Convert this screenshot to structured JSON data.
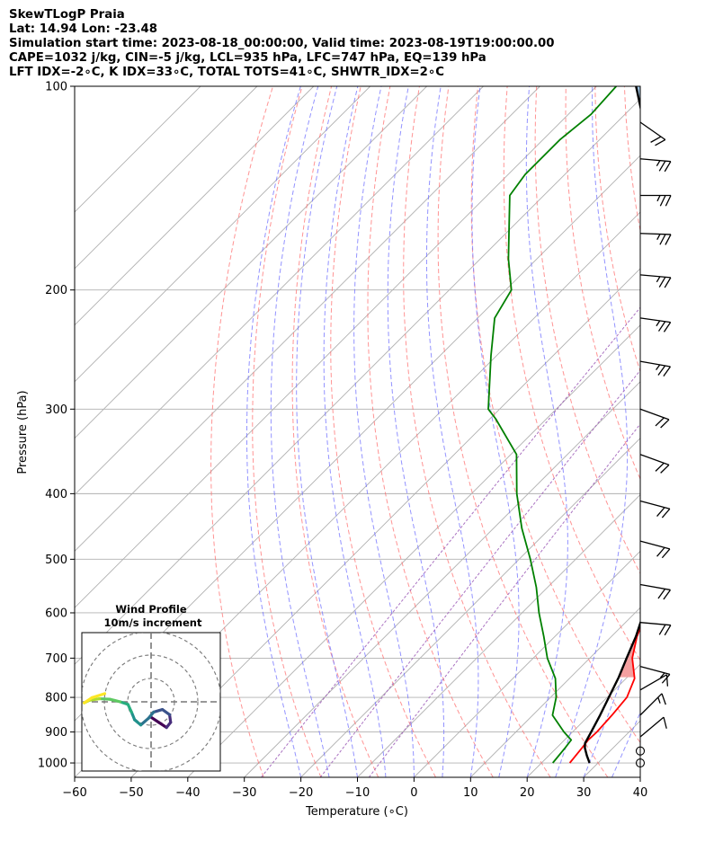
{
  "header": {
    "line1": "SkewTLogP Praia",
    "line2": "Lat: 14.94   Lon: -23.48",
    "line3": "Simulation start time: 2023-08-18_00:00:00, Valid time: 2023-08-19T19:00:00.00",
    "line4": "CAPE=1032 j/kg, CIN=-5 j/kg, LCL=935 hPa, LFC=747 hPa, EQ=139 hPa",
    "line5": "LFT IDX=-2∘C, K IDX=33∘C, TOTAL TOTS=41∘C, SHWTR_IDX=2∘C"
  },
  "chart_data": {
    "type": "line",
    "xlabel": "Temperature (∘C)",
    "ylabel": "Pressure (hPa)",
    "xlim": [
      -60,
      40
    ],
    "ylim": [
      1050,
      100
    ],
    "yscale": "log",
    "skew": "45deg",
    "grid": true,
    "x_ticks": [
      -60,
      -50,
      -40,
      -30,
      -20,
      -10,
      0,
      10,
      20,
      30,
      40
    ],
    "y_ticks": [
      100,
      200,
      300,
      400,
      500,
      600,
      700,
      800,
      900,
      1000
    ],
    "colors": {
      "temperature": "#ff0000",
      "dewpoint": "#008000",
      "parcel": "#000000",
      "cape_fill": "#f4a0a0",
      "cin_fill": "#9fc4e2",
      "dry_adiabat": "#ff7070",
      "moist_adiabat": "#6f6fff",
      "mixing_ratio": "#9b59b6",
      "isotherm": "#b0b0b0"
    },
    "temperature": [
      [
        1000,
        25.0
      ],
      [
        950,
        24.5
      ],
      [
        925,
        24.2
      ],
      [
        900,
        24.3
      ],
      [
        850,
        24.0
      ],
      [
        800,
        23.5
      ],
      [
        750,
        21.5
      ],
      [
        700,
        17.5
      ],
      [
        650,
        14.5
      ],
      [
        600,
        12.0
      ],
      [
        550,
        9.0
      ],
      [
        500,
        5.0
      ],
      [
        450,
        -0.5
      ],
      [
        400,
        -6.5
      ],
      [
        350,
        -12.5
      ],
      [
        300,
        -21.0
      ],
      [
        250,
        -31.0
      ],
      [
        200,
        -42.5
      ],
      [
        170,
        -51.0
      ],
      [
        150,
        -58.0
      ],
      [
        140,
        -62.0
      ],
      [
        130,
        -65.0
      ],
      [
        120,
        -68.0
      ],
      [
        110,
        -72.5
      ],
      [
        100,
        -77.0
      ]
    ],
    "dewpoint": [
      [
        1000,
        22.0
      ],
      [
        950,
        21.5
      ],
      [
        925,
        21.2
      ],
      [
        900,
        18.5
      ],
      [
        850,
        13.5
      ],
      [
        800,
        11.0
      ],
      [
        750,
        7.5
      ],
      [
        700,
        2.5
      ],
      [
        650,
        -2.0
      ],
      [
        600,
        -7.0
      ],
      [
        550,
        -12.0
      ],
      [
        500,
        -18.0
      ],
      [
        450,
        -25.0
      ],
      [
        400,
        -32.0
      ],
      [
        350,
        -39.0
      ],
      [
        310,
        -49.0
      ],
      [
        300,
        -52.0
      ],
      [
        250,
        -61.0
      ],
      [
        220,
        -67.0
      ],
      [
        200,
        -69.0
      ],
      [
        180,
        -75.0
      ],
      [
        160,
        -81.0
      ],
      [
        145,
        -86.0
      ],
      [
        135,
        -87.0
      ],
      [
        120,
        -87.0
      ],
      [
        110,
        -86.0
      ],
      [
        100,
        -86.5
      ]
    ],
    "parcel": [
      [
        1000,
        28.5
      ],
      [
        975,
        26.7
      ],
      [
        950,
        25.0
      ],
      [
        935,
        24.2
      ],
      [
        900,
        23.3
      ],
      [
        850,
        21.9
      ],
      [
        800,
        20.3
      ],
      [
        747,
        18.5
      ],
      [
        700,
        16.5
      ],
      [
        650,
        14.3
      ],
      [
        600,
        11.5
      ],
      [
        550,
        8.4
      ],
      [
        500,
        4.9
      ],
      [
        450,
        0.5
      ],
      [
        400,
        -4.5
      ],
      [
        350,
        -10.5
      ],
      [
        300,
        -18.0
      ],
      [
        250,
        -27.5
      ],
      [
        200,
        -40.0
      ],
      [
        170,
        -49.5
      ],
      [
        150,
        -57.0
      ],
      [
        139,
        -62.0
      ],
      [
        120,
        -71.5
      ],
      [
        100,
        -83.0
      ]
    ],
    "wind_barbs": [
      {
        "p": 1000,
        "speed_kt": 0,
        "dir_deg": 0
      },
      {
        "p": 960,
        "speed_kt": 0,
        "dir_deg": 0
      },
      {
        "p": 915,
        "speed_kt": 10,
        "dir_deg": 50
      },
      {
        "p": 850,
        "speed_kt": 15,
        "dir_deg": 45
      },
      {
        "p": 780,
        "speed_kt": 10,
        "dir_deg": 60
      },
      {
        "p": 720,
        "speed_kt": 15,
        "dir_deg": 105
      },
      {
        "p": 620,
        "speed_kt": 20,
        "dir_deg": 95
      },
      {
        "p": 545,
        "speed_kt": 20,
        "dir_deg": 100
      },
      {
        "p": 470,
        "speed_kt": 20,
        "dir_deg": 105
      },
      {
        "p": 410,
        "speed_kt": 20,
        "dir_deg": 105
      },
      {
        "p": 350,
        "speed_kt": 20,
        "dir_deg": 110
      },
      {
        "p": 300,
        "speed_kt": 20,
        "dir_deg": 110
      },
      {
        "p": 255,
        "speed_kt": 25,
        "dir_deg": 100
      },
      {
        "p": 220,
        "speed_kt": 25,
        "dir_deg": 98
      },
      {
        "p": 190,
        "speed_kt": 25,
        "dir_deg": 95
      },
      {
        "p": 165,
        "speed_kt": 25,
        "dir_deg": 92
      },
      {
        "p": 145,
        "speed_kt": 25,
        "dir_deg": 90
      },
      {
        "p": 128,
        "speed_kt": 25,
        "dir_deg": 95
      },
      {
        "p": 113,
        "speed_kt": 20,
        "dir_deg": 125
      }
    ],
    "hodograph": {
      "title": "Wind Profile",
      "subtitle": "10m/s increment",
      "ring_step_ms": 10,
      "rings": 3,
      "points": [
        [
          0,
          -3
        ],
        [
          1.5,
          -4
        ],
        [
          3,
          -5
        ],
        [
          3.8,
          -4
        ],
        [
          3.6,
          -2.5
        ],
        [
          2.2,
          -1.5
        ],
        [
          0.5,
          -2
        ],
        [
          -0.5,
          -3.2
        ],
        [
          -2,
          -4.5
        ],
        [
          -3.2,
          -3.5
        ],
        [
          -3.8,
          -2
        ],
        [
          -4.5,
          -0.5
        ],
        [
          -6,
          0
        ],
        [
          -8,
          0.5
        ],
        [
          -10,
          0.6
        ],
        [
          -12,
          0.3
        ],
        [
          -13,
          -0.2
        ],
        [
          -11.5,
          0.8
        ],
        [
          -9,
          1.6
        ]
      ]
    }
  }
}
